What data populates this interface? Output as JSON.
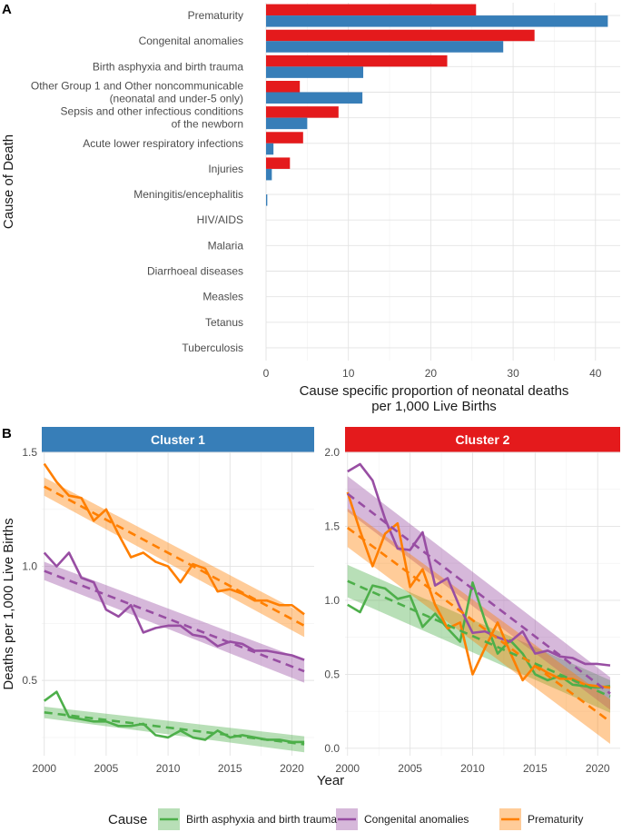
{
  "chart_data": [
    {
      "type": "bar",
      "panel_label": "A",
      "orientation": "horizontal",
      "ylabel": "Cause of Death",
      "xlabel_lines": [
        "Cause specific proportion of neonatal deaths",
        "per 1,000 Live Births"
      ],
      "xlim": [
        0,
        43
      ],
      "xticks": [
        0,
        10,
        20,
        30,
        40
      ],
      "categories": [
        {
          "lines": [
            "Prematurity"
          ]
        },
        {
          "lines": [
            "Congenital anomalies"
          ]
        },
        {
          "lines": [
            "Birth asphyxia and birth trauma"
          ]
        },
        {
          "lines": [
            "Other Group 1 and Other noncommunicable",
            "(neonatal and under-5 only)"
          ]
        },
        {
          "lines": [
            "Sepsis and other infectious conditions",
            "of the newborn"
          ]
        },
        {
          "lines": [
            "Acute lower respiratory infections"
          ]
        },
        {
          "lines": [
            "Injuries"
          ]
        },
        {
          "lines": [
            "Meningitis/encephalitis"
          ]
        },
        {
          "lines": [
            "HIV/AIDS"
          ]
        },
        {
          "lines": [
            "Malaria"
          ]
        },
        {
          "lines": [
            "Diarrhoeal diseases"
          ]
        },
        {
          "lines": [
            "Measles"
          ]
        },
        {
          "lines": [
            "Tetanus"
          ]
        },
        {
          "lines": [
            "Tuberculosis"
          ]
        }
      ],
      "series": [
        {
          "name": "Cluster 2",
          "color": "#e41a1c",
          "values": [
            25.5,
            32.6,
            22.0,
            4.1,
            8.8,
            4.5,
            2.9,
            0,
            0,
            0,
            0,
            0,
            0,
            0
          ]
        },
        {
          "name": "Cluster 1",
          "color": "#377eb8",
          "values": [
            41.5,
            28.8,
            11.8,
            11.7,
            5.0,
            0.9,
            0.7,
            0.15,
            0,
            0,
            0,
            0,
            0,
            0
          ]
        }
      ]
    },
    {
      "type": "line",
      "panel_label": "B",
      "xlabel": "Year",
      "ylabel": "Deaths per 1,000 Live Births",
      "years": [
        2000,
        2001,
        2002,
        2003,
        2004,
        2005,
        2006,
        2007,
        2008,
        2009,
        2010,
        2011,
        2012,
        2013,
        2014,
        2015,
        2016,
        2017,
        2018,
        2019,
        2020,
        2021
      ],
      "xticks": [
        2000,
        2005,
        2010,
        2015,
        2020
      ],
      "xlim": [
        1999.8,
        2021.8
      ],
      "legend_title": "Cause",
      "legend_position": "bottom",
      "series_meta": [
        {
          "name": "Birth asphyxia and birth trauma",
          "color": "#4daf4a"
        },
        {
          "name": "Congenital anomalies",
          "color": "#984ea3"
        },
        {
          "name": "Prematurity",
          "color": "#ff7f00"
        }
      ],
      "panels": [
        {
          "title": "Cluster 1",
          "strip_color": "#377eb8",
          "ylim": [
            0.17,
            1.5
          ],
          "yticks": [
            0.5,
            1.0,
            1.5
          ],
          "ytick_labels": [
            "0.5",
            "1.0",
            "1.5"
          ],
          "series": [
            {
              "name": "Birth asphyxia and birth trauma",
              "values": [
                0.41,
                0.45,
                0.34,
                0.33,
                0.32,
                0.32,
                0.3,
                0.3,
                0.31,
                0.26,
                0.25,
                0.28,
                0.25,
                0.24,
                0.28,
                0.25,
                0.26,
                0.25,
                0.24,
                0.24,
                0.23,
                0.23
              ],
              "trend": [
                0.36,
                0.22
              ],
              "band": [
                0.025,
                0.035
              ]
            },
            {
              "name": "Congenital anomalies",
              "values": [
                1.06,
                1.0,
                1.06,
                0.95,
                0.93,
                0.81,
                0.78,
                0.83,
                0.71,
                0.73,
                0.74,
                0.74,
                0.7,
                0.69,
                0.65,
                0.67,
                0.66,
                0.63,
                0.63,
                0.62,
                0.61,
                0.59
              ],
              "trend": [
                0.98,
                0.54
              ],
              "band": [
                0.04,
                0.05
              ]
            },
            {
              "name": "Prematurity",
              "values": [
                1.45,
                1.37,
                1.31,
                1.3,
                1.2,
                1.25,
                1.14,
                1.04,
                1.06,
                1.02,
                1.0,
                0.93,
                1.01,
                0.99,
                0.89,
                0.9,
                0.88,
                0.85,
                0.85,
                0.83,
                0.83,
                0.79
              ],
              "trend": [
                1.35,
                0.74
              ],
              "band": [
                0.04,
                0.05
              ]
            }
          ]
        },
        {
          "title": "Cluster 2",
          "strip_color": "#e41a1c",
          "ylim": [
            -0.05,
            2.0
          ],
          "yticks": [
            0.0,
            0.5,
            1.0,
            1.5,
            2.0
          ],
          "ytick_labels": [
            "0.0",
            "0.5",
            "1.0",
            "1.5",
            "2.0"
          ],
          "series": [
            {
              "name": "Birth asphyxia and birth trauma",
              "values": [
                0.97,
                0.92,
                1.1,
                1.08,
                1.01,
                1.03,
                0.82,
                0.91,
                0.81,
                0.72,
                1.12,
                0.86,
                0.64,
                0.73,
                0.64,
                0.5,
                0.46,
                0.49,
                0.43,
                0.42,
                0.41,
                0.42
              ],
              "trend": [
                1.13,
                0.35
              ],
              "band": [
                0.11,
                0.11
              ]
            },
            {
              "name": "Congenital anomalies",
              "values": [
                1.87,
                1.92,
                1.81,
                1.55,
                1.35,
                1.34,
                1.46,
                1.1,
                1.15,
                0.95,
                0.78,
                0.79,
                0.75,
                0.72,
                0.79,
                0.64,
                0.66,
                0.62,
                0.61,
                0.57,
                0.57,
                0.56
              ],
              "trend": [
                1.72,
                0.37
              ],
              "band": [
                0.12,
                0.11
              ]
            },
            {
              "name": "Prematurity",
              "values": [
                1.73,
                1.47,
                1.23,
                1.45,
                1.52,
                1.09,
                1.21,
                0.97,
                0.81,
                0.85,
                0.5,
                0.68,
                0.85,
                0.65,
                0.46,
                0.56,
                0.51,
                0.47,
                0.47,
                0.43,
                0.42,
                0.41
              ],
              "trend": [
                1.49,
                0.18
              ],
              "band": [
                0.13,
                0.15
              ]
            }
          ]
        }
      ]
    }
  ]
}
